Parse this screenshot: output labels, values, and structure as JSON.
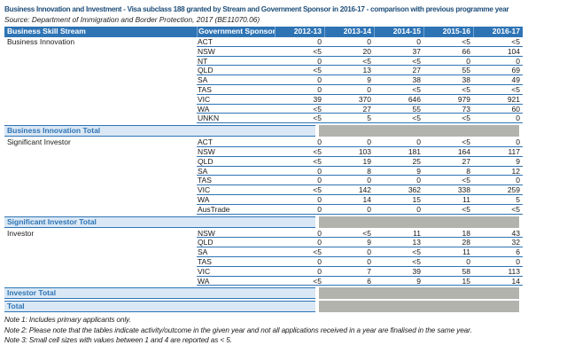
{
  "title": "Business Innovation and Investment - Visa subclass 188 granted by Stream and Government Sponsor in 2016-17 - comparison with previous programme year",
  "source": "Source: Department of Immigration and Border Protection, 2017 (BE11070.06)",
  "columns": {
    "stream": "Business Skill Stream",
    "sponsor": "Government Sponsor",
    "years": [
      "2012-13",
      "2013-14",
      "2014-15",
      "2015-16",
      "2016-17"
    ]
  },
  "sections": [
    {
      "stream": "Business Innovation",
      "total_label": "Business Innovation Total",
      "rows": [
        {
          "sponsor": "ACT",
          "values": [
            "0",
            "0",
            "0",
            "<5",
            "<5"
          ]
        },
        {
          "sponsor": "NSW",
          "values": [
            "<5",
            "20",
            "37",
            "66",
            "104"
          ]
        },
        {
          "sponsor": "NT",
          "values": [
            "0",
            "<5",
            "<5",
            "0",
            "0"
          ]
        },
        {
          "sponsor": "QLD",
          "values": [
            "<5",
            "13",
            "27",
            "55",
            "69"
          ]
        },
        {
          "sponsor": "SA",
          "values": [
            "0",
            "9",
            "38",
            "38",
            "49"
          ]
        },
        {
          "sponsor": "TAS",
          "values": [
            "0",
            "0",
            "<5",
            "<5",
            "<5"
          ]
        },
        {
          "sponsor": "VIC",
          "values": [
            "39",
            "370",
            "646",
            "979",
            "921"
          ]
        },
        {
          "sponsor": "WA",
          "values": [
            "<5",
            "27",
            "55",
            "73",
            "60"
          ]
        },
        {
          "sponsor": "UNKN",
          "values": [
            "<5",
            "5",
            "<5",
            "<5",
            "0"
          ]
        }
      ]
    },
    {
      "stream": "Significant Investor",
      "total_label": "Significant Investor Total",
      "rows": [
        {
          "sponsor": "ACT",
          "values": [
            "0",
            "0",
            "0",
            "<5",
            "0"
          ]
        },
        {
          "sponsor": "NSW",
          "values": [
            "<5",
            "103",
            "181",
            "164",
            "117"
          ]
        },
        {
          "sponsor": "QLD",
          "values": [
            "<5",
            "19",
            "25",
            "27",
            "9"
          ]
        },
        {
          "sponsor": "SA",
          "values": [
            "0",
            "8",
            "9",
            "8",
            "12"
          ]
        },
        {
          "sponsor": "TAS",
          "values": [
            "0",
            "0",
            "0",
            "<5",
            "0"
          ]
        },
        {
          "sponsor": "VIC",
          "values": [
            "<5",
            "142",
            "362",
            "338",
            "259"
          ]
        },
        {
          "sponsor": "WA",
          "values": [
            "0",
            "14",
            "15",
            "11",
            "5"
          ]
        },
        {
          "sponsor": "AusTrade",
          "values": [
            "0",
            "0",
            "0",
            "<5",
            "<5"
          ]
        }
      ]
    },
    {
      "stream": "Investor",
      "total_label": "Investor Total",
      "rows": [
        {
          "sponsor": "NSW",
          "values": [
            "0",
            "<5",
            "11",
            "18",
            "43"
          ]
        },
        {
          "sponsor": "QLD",
          "values": [
            "0",
            "9",
            "13",
            "28",
            "32"
          ]
        },
        {
          "sponsor": "SA",
          "values": [
            "<5",
            "0",
            "<5",
            "11",
            "6"
          ]
        },
        {
          "sponsor": "TAS",
          "values": [
            "0",
            "0",
            "<5",
            "0",
            "0"
          ]
        },
        {
          "sponsor": "VIC",
          "values": [
            "0",
            "7",
            "39",
            "58",
            "113"
          ]
        },
        {
          "sponsor": "WA",
          "values": [
            "<5",
            "6",
            "9",
            "15",
            "14"
          ]
        }
      ]
    }
  ],
  "grand_total_label": "Total",
  "notes": [
    "Note 1: Includes primary applicants only.",
    "Note 2: Please note that the tables indicate activity/outcome in the given year and not all applications received in a year are finalised in the same year.",
    "Note 3: Small cell sizes with values between 1 and 4 are reported as < 5."
  ],
  "colors": {
    "header_bg": "#2E74B5",
    "header_text": "#FFFFFF",
    "accent": "#2E74B5",
    "title_color": "#1F4E79",
    "total_label_bg": "#DAE8F5",
    "total_value_bg": "#B3B3AE"
  }
}
